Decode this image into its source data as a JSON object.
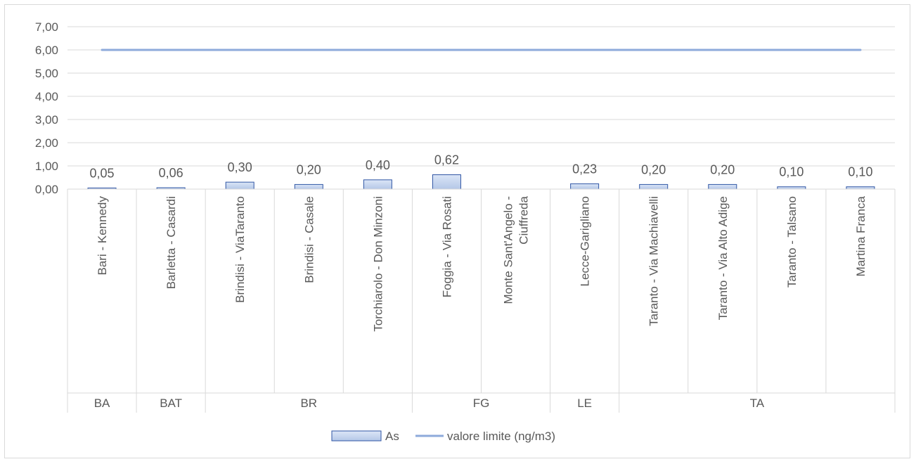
{
  "chart_data": {
    "type": "bar",
    "title": "",
    "xlabel": "",
    "ylabel": "",
    "ylim": [
      0,
      7
    ],
    "y_ticks": [
      "0,00",
      "1,00",
      "2,00",
      "3,00",
      "4,00",
      "5,00",
      "6,00",
      "7,00"
    ],
    "grid": true,
    "legend_position": "bottom",
    "categories": [
      {
        "lines": [
          "Bari - Kennedy"
        ],
        "group": "BA"
      },
      {
        "lines": [
          "Barletta - Casardi"
        ],
        "group": "BAT"
      },
      {
        "lines": [
          "Brindisi - ViaTaranto"
        ],
        "group": "BR"
      },
      {
        "lines": [
          "Brindisi - Casale"
        ],
        "group": "BR"
      },
      {
        "lines": [
          "Torchiarolo - Don Minzoni"
        ],
        "group": "BR"
      },
      {
        "lines": [
          "Foggia - Via Rosati"
        ],
        "group": "FG"
      },
      {
        "lines": [
          "Monte Sant'Angelo -",
          "Ciuffreda"
        ],
        "group": "FG"
      },
      {
        "lines": [
          "Lecce-Garigliano"
        ],
        "group": "LE"
      },
      {
        "lines": [
          "Taranto - Via Machiavelli"
        ],
        "group": "TA"
      },
      {
        "lines": [
          "Taranto - Via Alto Adige"
        ],
        "group": "TA"
      },
      {
        "lines": [
          "Taranto - Talsano"
        ],
        "group": "TA"
      },
      {
        "lines": [
          "Martina Franca"
        ],
        "group": "TA"
      }
    ],
    "groups": [
      "BA",
      "BAT",
      "BR",
      "FG",
      "LE",
      "TA"
    ],
    "series": [
      {
        "name": "As",
        "type": "bar",
        "values": [
          0.05,
          0.06,
          0.3,
          0.2,
          0.4,
          0.62,
          null,
          0.23,
          0.2,
          0.2,
          0.1,
          0.1
        ],
        "labels": [
          "0,05",
          "0,06",
          "0,30",
          "0,20",
          "0,40",
          "0,62",
          "",
          "0,23",
          "0,20",
          "0,20",
          "0,10",
          "0,10"
        ]
      },
      {
        "name": "valore limite (ng/m3)",
        "type": "line",
        "values": [
          6,
          6,
          6,
          6,
          6,
          6,
          6,
          6,
          6,
          6,
          6,
          6
        ]
      }
    ],
    "colors": {
      "bar_fill_top": "#dce6f7",
      "bar_fill_bottom": "#b4c7e7",
      "bar_stroke": "#2f55a4",
      "line": "#8eaadb",
      "grid": "#d9d9d9",
      "text": "#595959"
    }
  }
}
